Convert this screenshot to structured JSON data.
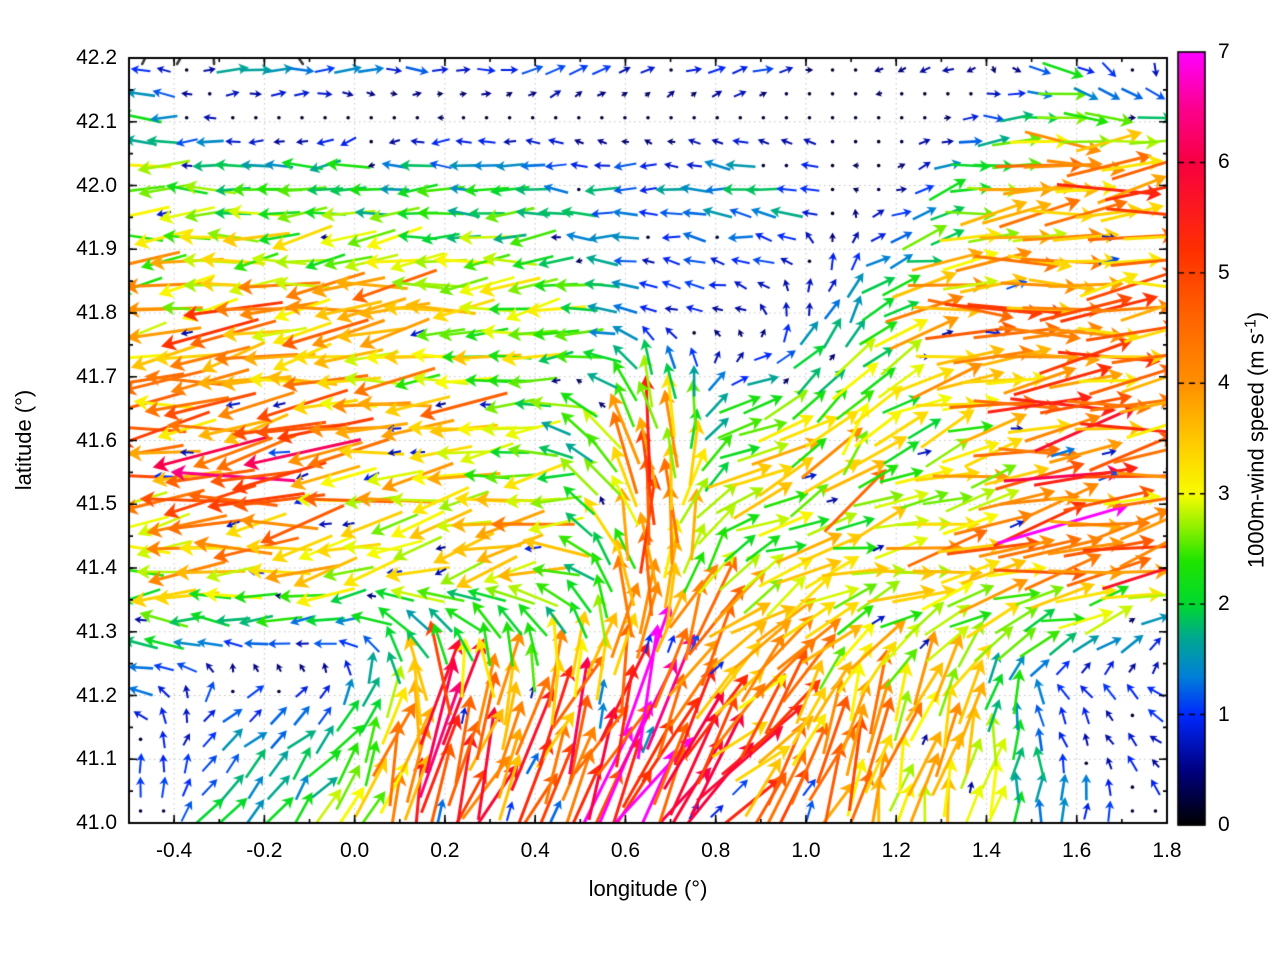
{
  "chart_data": {
    "type": "vector-field",
    "title": "",
    "xlabel": "longitude (°)",
    "ylabel": "latitude (°)",
    "xlim": [
      -0.5,
      1.8
    ],
    "ylim": [
      41.0,
      42.2
    ],
    "grid": "dotted light-gray lines at labeled major ticks, ticks mirrored on all four sides",
    "x_ticks": [
      {
        "v": -0.4,
        "label": "-0.4"
      },
      {
        "v": -0.2,
        "label": "-0.2"
      },
      {
        "v": 0.0,
        "label": "0.0"
      },
      {
        "v": 0.2,
        "label": "0.2"
      },
      {
        "v": 0.4,
        "label": "0.4"
      },
      {
        "v": 0.6,
        "label": "0.6"
      },
      {
        "v": 0.8,
        "label": "0.8"
      },
      {
        "v": 1.0,
        "label": "1.0"
      },
      {
        "v": 1.2,
        "label": "1.2"
      },
      {
        "v": 1.4,
        "label": "1.4"
      },
      {
        "v": 1.6,
        "label": "1.6"
      },
      {
        "v": 1.8,
        "label": "1.8"
      }
    ],
    "x_minor_step": 0.1,
    "y_ticks": [
      {
        "v": 41.0,
        "label": "41.0"
      },
      {
        "v": 41.1,
        "label": "41.1"
      },
      {
        "v": 41.2,
        "label": "41.2"
      },
      {
        "v": 41.3,
        "label": "41.3"
      },
      {
        "v": 41.4,
        "label": "41.4"
      },
      {
        "v": 41.5,
        "label": "41.5"
      },
      {
        "v": 41.6,
        "label": "41.6"
      },
      {
        "v": 41.7,
        "label": "41.7"
      },
      {
        "v": 41.8,
        "label": "41.8"
      },
      {
        "v": 41.9,
        "label": "41.9"
      },
      {
        "v": 42.0,
        "label": "42.0"
      },
      {
        "v": 42.1,
        "label": "42.1"
      },
      {
        "v": 42.2,
        "label": "42.2"
      }
    ],
    "y_minor_step": 0.05,
    "colorbar": {
      "label_main": "1000m-wind speed (m s",
      "label_sup": "-1",
      "label_suffix": ")",
      "range": [
        0,
        7
      ],
      "ticks": [
        {
          "v": 0,
          "label": "0"
        },
        {
          "v": 1,
          "label": "1"
        },
        {
          "v": 2,
          "label": "2"
        },
        {
          "v": 3,
          "label": "3"
        },
        {
          "v": 4,
          "label": "4"
        },
        {
          "v": 5,
          "label": "5"
        },
        {
          "v": 6,
          "label": "6"
        },
        {
          "v": 7,
          "label": "7"
        }
      ],
      "palette_stops": [
        [
          0.0,
          "#000000"
        ],
        [
          0.5,
          "#000080"
        ],
        [
          1.0,
          "#0028ff"
        ],
        [
          1.35,
          "#0080d8"
        ],
        [
          1.7,
          "#00a890"
        ],
        [
          2.0,
          "#00d830"
        ],
        [
          2.4,
          "#20e400"
        ],
        [
          2.7,
          "#90f000"
        ],
        [
          3.0,
          "#f8fc00"
        ],
        [
          3.5,
          "#ffc800"
        ],
        [
          4.0,
          "#ff9000"
        ],
        [
          4.6,
          "#ff6400"
        ],
        [
          5.2,
          "#ff3000"
        ],
        [
          6.0,
          "#f80040"
        ],
        [
          6.5,
          "#fc0090"
        ],
        [
          7.0,
          "#ff00ff"
        ]
      ]
    },
    "contours": {
      "description": "terrain elevation contour lines overlaid on the wind field",
      "color": "#3b3b3b",
      "linewidth": 2.6,
      "n_levels": 4
    },
    "wind_grid": {
      "units": "m/s, u = eastward component, v = northward component, coarse estimate of plotted arrow field",
      "lons": [
        -0.5,
        -0.27,
        -0.04,
        0.19,
        0.42,
        0.65,
        0.88,
        1.11,
        1.34,
        1.57,
        1.8
      ],
      "lats": [
        41.0,
        41.2,
        41.4,
        41.6,
        41.8,
        42.0,
        42.2
      ],
      "u": [
        [
          0.5,
          1.2,
          1.5,
          2.0,
          2.5,
          3.5,
          3.5,
          1.0,
          0.5,
          0.2,
          -0.3
        ],
        [
          -1.2,
          0.8,
          0.8,
          0.5,
          1.5,
          2.5,
          3.0,
          1.5,
          0.8,
          -0.5,
          -0.8
        ],
        [
          -3.4,
          -3.6,
          -3.4,
          -3.0,
          -3.3,
          0.0,
          2.5,
          3.0,
          3.5,
          4.5,
          3.5
        ],
        [
          -4.0,
          -4.3,
          -4.0,
          -3.2,
          -2.2,
          -1.2,
          3.2,
          2.0,
          2.5,
          4.8,
          4.0
        ],
        [
          -3.2,
          -3.8,
          -3.5,
          -3.0,
          -2.8,
          -0.7,
          -0.6,
          1.0,
          4.5,
          4.2,
          3.8
        ],
        [
          -3.0,
          -2.2,
          -2.0,
          -2.0,
          -1.8,
          -1.2,
          -1.8,
          -0.3,
          1.8,
          4.2,
          4.5
        ],
        [
          -1.5,
          1.8,
          1.8,
          1.2,
          1.5,
          0.8,
          1.5,
          -0.3,
          -0.8,
          1.2,
          -0.5
        ]
      ],
      "v": [
        [
          1.2,
          1.5,
          2.0,
          5.5,
          4.0,
          5.5,
          3.5,
          3.8,
          3.0,
          1.2,
          0.6
        ],
        [
          0.4,
          0.8,
          0.6,
          5.0,
          4.0,
          6.0,
          3.0,
          3.5,
          3.2,
          0.8,
          0.4
        ],
        [
          -0.3,
          -0.4,
          -0.6,
          -1.0,
          -0.5,
          4.0,
          1.5,
          0.5,
          0.5,
          0.8,
          1.0
        ],
        [
          -0.5,
          -0.8,
          -0.7,
          -0.5,
          -0.2,
          4.6,
          0.4,
          2.5,
          0.8,
          0.8,
          0.5
        ],
        [
          -0.4,
          -0.6,
          -0.5,
          -0.4,
          -0.3,
          0.2,
          0.3,
          1.5,
          0.2,
          0.3,
          0.5
        ],
        [
          0.0,
          0.0,
          -0.3,
          0.0,
          0.0,
          0.0,
          0.2,
          0.1,
          0.5,
          0.3,
          0.5
        ],
        [
          0.0,
          0.3,
          0.0,
          0.0,
          0.3,
          0.4,
          0.2,
          -0.2,
          -0.3,
          -0.5,
          -0.8
        ]
      ]
    }
  }
}
